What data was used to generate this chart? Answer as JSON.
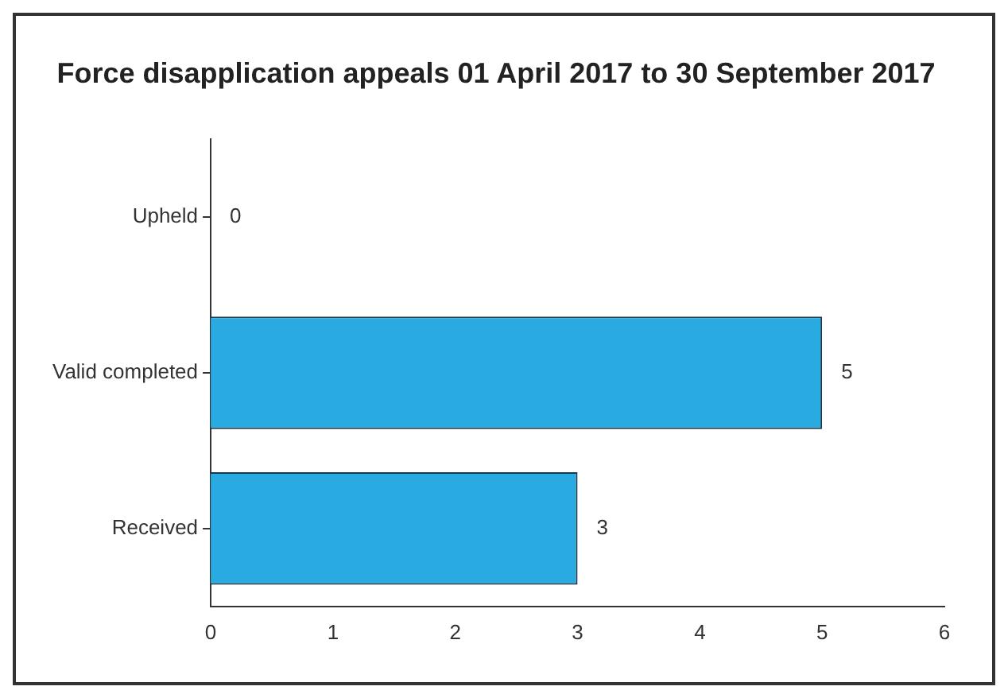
{
  "chart_data": {
    "type": "bar",
    "orientation": "horizontal",
    "title": "Force disapplication appeals 01 April 2017 to 30 September 2017",
    "categories": [
      "Upheld",
      "Valid completed",
      "Received"
    ],
    "values": [
      0,
      5,
      3
    ],
    "color": "#29abe2",
    "xlim": [
      0,
      6
    ],
    "xticks": [
      0,
      1,
      2,
      3,
      4,
      5,
      6
    ],
    "grid": false,
    "legend": false,
    "data_labels": true
  }
}
